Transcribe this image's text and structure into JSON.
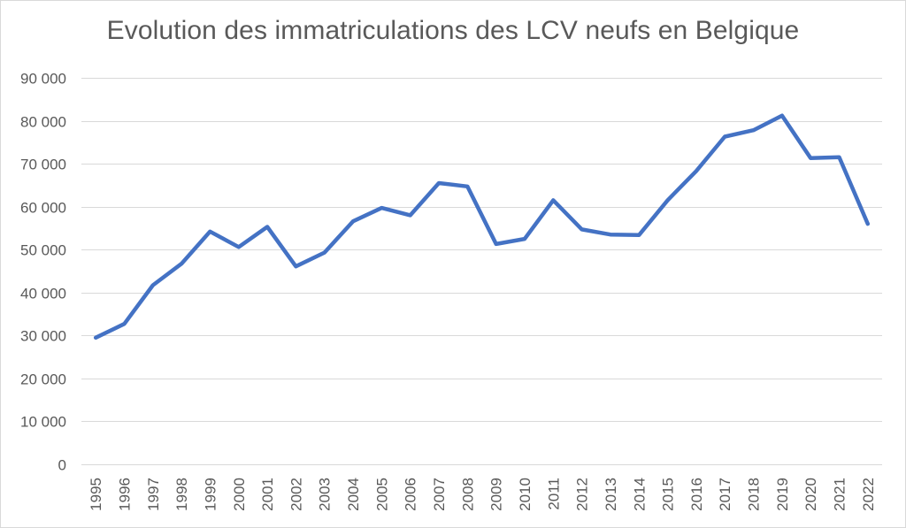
{
  "chart_data": {
    "type": "line",
    "title": "Evolution des immatriculations des LCV neufs en Belgique",
    "xlabel": "",
    "ylabel": "",
    "categories": [
      "1995",
      "1996",
      "1997",
      "1998",
      "1999",
      "2000",
      "2001",
      "2002",
      "2003",
      "2004",
      "2005",
      "2006",
      "2007",
      "2008",
      "2009",
      "2010",
      "2011",
      "2012",
      "2013",
      "2014",
      "2015",
      "2016",
      "2017",
      "2018",
      "2019",
      "2020",
      "2021",
      "2022"
    ],
    "series": [
      {
        "values": [
          29500,
          32700,
          41700,
          46700,
          54200,
          50600,
          55300,
          46100,
          49300,
          56600,
          59700,
          58000,
          65500,
          64700,
          51300,
          52500,
          61500,
          54700,
          53500,
          53400,
          61500,
          68300,
          76300,
          77800,
          81200,
          71300,
          71500,
          56000
        ],
        "color": "#4472c4"
      }
    ],
    "ylim": [
      0,
      90000
    ],
    "yticks": [
      {
        "value": 0,
        "label": "0"
      },
      {
        "value": 10000,
        "label": "10 000"
      },
      {
        "value": 20000,
        "label": "20 000"
      },
      {
        "value": 30000,
        "label": "30 000"
      },
      {
        "value": 40000,
        "label": "40 000"
      },
      {
        "value": 50000,
        "label": "50 000"
      },
      {
        "value": 60000,
        "label": "60 000"
      },
      {
        "value": 70000,
        "label": "70 000"
      },
      {
        "value": 80000,
        "label": "80 000"
      },
      {
        "value": 90000,
        "label": "90 000"
      }
    ],
    "grid": true,
    "legend": "none",
    "gridColor": "#d9d9d9",
    "textColor": "#595959"
  }
}
